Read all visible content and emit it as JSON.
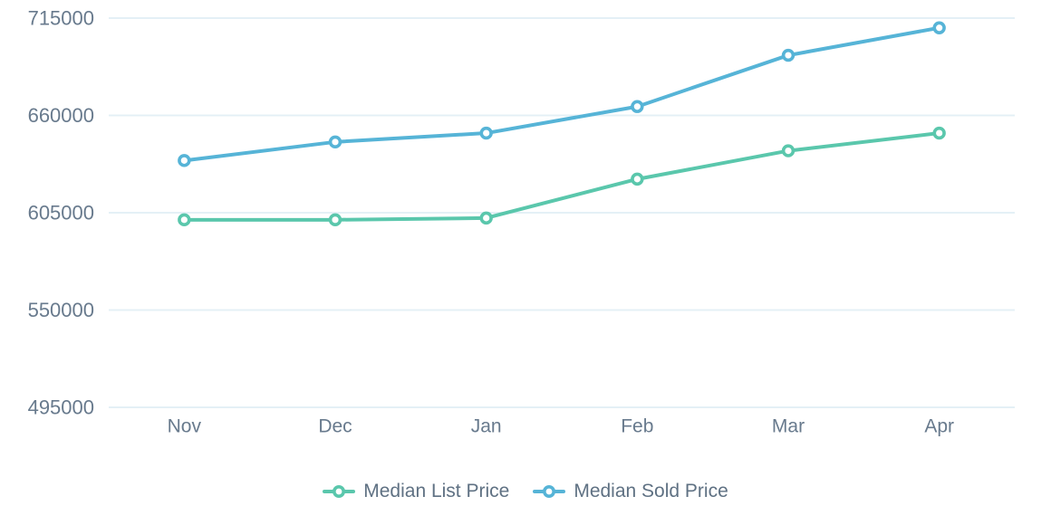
{
  "chart_data": {
    "type": "line",
    "title": "",
    "xlabel": "",
    "ylabel": "",
    "categories": [
      "Nov",
      "Dec",
      "Jan",
      "Feb",
      "Mar",
      "Apr"
    ],
    "series": [
      {
        "name": "Median List Price",
        "color": "#5AC7AC",
        "values": [
          601000,
          601000,
          602000,
          624000,
          640000,
          650000
        ]
      },
      {
        "name": "Median Sold Price",
        "color": "#56B4D7",
        "values": [
          634500,
          645000,
          650000,
          665000,
          694000,
          709500
        ]
      }
    ],
    "ylim": [
      495000,
      715000
    ],
    "yticks": [
      715000,
      660000,
      605000,
      550000,
      495000
    ],
    "ytick_labels": [
      "715000",
      "660000",
      "605000",
      "550000",
      "495000"
    ],
    "grid": "horizontal-only",
    "legend_position": "bottom-center",
    "styles": {
      "grid_color": "#E4F0F6",
      "axis_text_color": "#687A8D",
      "legend_text_color": "#5F7183",
      "marker_fill": "#FFFFFF",
      "background": "#FFFFFF"
    }
  }
}
